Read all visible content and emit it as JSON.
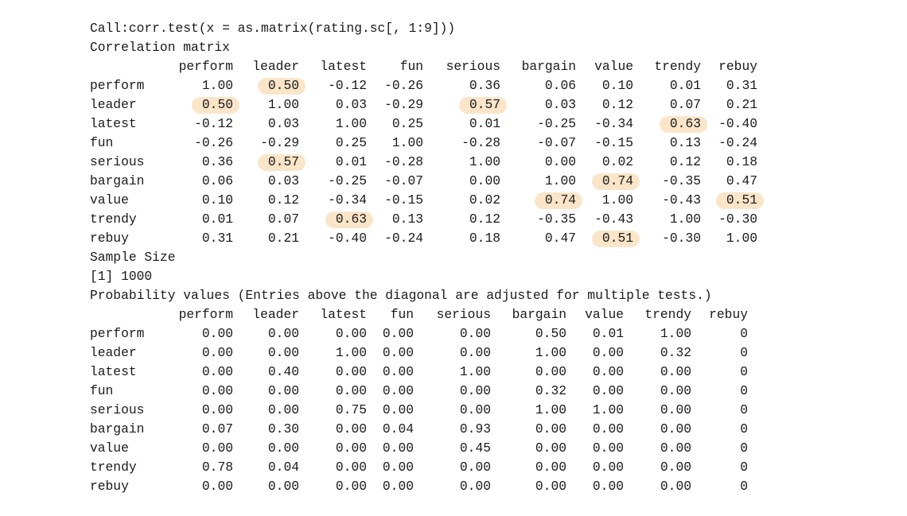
{
  "console": {
    "call_line": "Call:corr.test(x = as.matrix(rating.sc[, 1:9]))",
    "corr_title": "Correlation matrix",
    "sample_size_label": "Sample Size",
    "sample_size_value": "[1] 1000",
    "prob_title": "Probability values (Entries above the diagonal are adjusted for multiple tests.)",
    "highlight_color": "#fbe2c3"
  },
  "columns": [
    "perform",
    "leader",
    "latest",
    "fun",
    "serious",
    "bargain",
    "value",
    "trendy",
    "rebuy"
  ],
  "correlation": {
    "rows": [
      {
        "label": "perform",
        "values": [
          "1.00",
          "0.50",
          "-0.12",
          "-0.26",
          "0.36",
          "0.06",
          "0.10",
          "0.01",
          "0.31"
        ]
      },
      {
        "label": "leader",
        "values": [
          "0.50",
          "1.00",
          "0.03",
          "-0.29",
          "0.57",
          "0.03",
          "0.12",
          "0.07",
          "0.21"
        ]
      },
      {
        "label": "latest",
        "values": [
          "-0.12",
          "0.03",
          "1.00",
          "0.25",
          "0.01",
          "-0.25",
          "-0.34",
          "0.63",
          "-0.40"
        ]
      },
      {
        "label": "fun",
        "values": [
          "-0.26",
          "-0.29",
          "0.25",
          "1.00",
          "-0.28",
          "-0.07",
          "-0.15",
          "0.13",
          "-0.24"
        ]
      },
      {
        "label": "serious",
        "values": [
          "0.36",
          "0.57",
          "0.01",
          "-0.28",
          "1.00",
          "0.00",
          "0.02",
          "0.12",
          "0.18"
        ]
      },
      {
        "label": "bargain",
        "values": [
          "0.06",
          "0.03",
          "-0.25",
          "-0.07",
          "0.00",
          "1.00",
          "0.74",
          "-0.35",
          "0.47"
        ]
      },
      {
        "label": "value",
        "values": [
          "0.10",
          "0.12",
          "-0.34",
          "-0.15",
          "0.02",
          "0.74",
          "1.00",
          "-0.43",
          "0.51"
        ]
      },
      {
        "label": "trendy",
        "values": [
          "0.01",
          "0.07",
          "0.63",
          "0.13",
          "0.12",
          "-0.35",
          "-0.43",
          "1.00",
          "-0.30"
        ]
      },
      {
        "label": "rebuy",
        "values": [
          "0.31",
          "0.21",
          "-0.40",
          "-0.24",
          "0.18",
          "0.47",
          "0.51",
          "-0.30",
          "1.00"
        ]
      }
    ],
    "highlighted_cells": [
      {
        "row": 0,
        "col": 1
      },
      {
        "row": 1,
        "col": 0
      },
      {
        "row": 1,
        "col": 4
      },
      {
        "row": 2,
        "col": 7
      },
      {
        "row": 4,
        "col": 1
      },
      {
        "row": 5,
        "col": 6
      },
      {
        "row": 6,
        "col": 5
      },
      {
        "row": 6,
        "col": 8
      },
      {
        "row": 7,
        "col": 2
      },
      {
        "row": 8,
        "col": 6
      }
    ]
  },
  "probability": {
    "rows": [
      {
        "label": "perform",
        "values": [
          "0.00",
          "0.00",
          "0.00",
          "0.00",
          "0.00",
          "0.50",
          "0.01",
          "1.00",
          "0"
        ]
      },
      {
        "label": "leader",
        "values": [
          "0.00",
          "0.00",
          "1.00",
          "0.00",
          "0.00",
          "1.00",
          "0.00",
          "0.32",
          "0"
        ]
      },
      {
        "label": "latest",
        "values": [
          "0.00",
          "0.40",
          "0.00",
          "0.00",
          "1.00",
          "0.00",
          "0.00",
          "0.00",
          "0"
        ]
      },
      {
        "label": "fun",
        "values": [
          "0.00",
          "0.00",
          "0.00",
          "0.00",
          "0.00",
          "0.32",
          "0.00",
          "0.00",
          "0"
        ]
      },
      {
        "label": "serious",
        "values": [
          "0.00",
          "0.00",
          "0.75",
          "0.00",
          "0.00",
          "1.00",
          "1.00",
          "0.00",
          "0"
        ]
      },
      {
        "label": "bargain",
        "values": [
          "0.07",
          "0.30",
          "0.00",
          "0.04",
          "0.93",
          "0.00",
          "0.00",
          "0.00",
          "0"
        ]
      },
      {
        "label": "value",
        "values": [
          "0.00",
          "0.00",
          "0.00",
          "0.00",
          "0.45",
          "0.00",
          "0.00",
          "0.00",
          "0"
        ]
      },
      {
        "label": "trendy",
        "values": [
          "0.78",
          "0.04",
          "0.00",
          "0.00",
          "0.00",
          "0.00",
          "0.00",
          "0.00",
          "0"
        ]
      },
      {
        "label": "rebuy",
        "values": [
          "0.00",
          "0.00",
          "0.00",
          "0.00",
          "0.00",
          "0.00",
          "0.00",
          "0.00",
          "0"
        ]
      }
    ]
  }
}
